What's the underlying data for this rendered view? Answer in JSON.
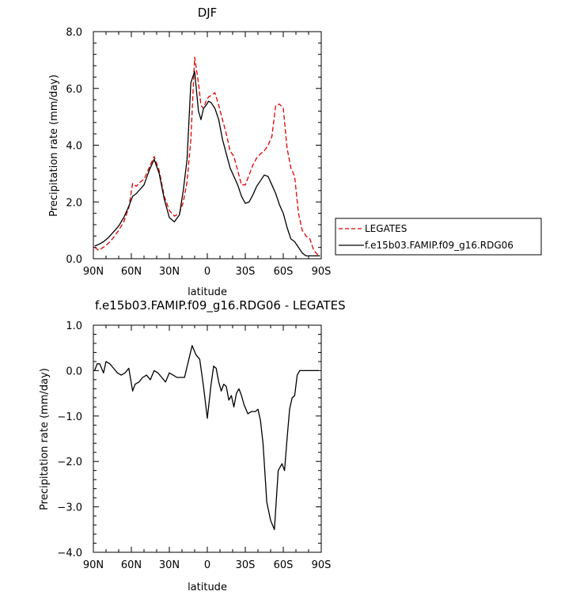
{
  "chart_data": [
    {
      "type": "line",
      "title": "DJF",
      "xlabel": "latitude",
      "ylabel": "Precipitation rate (mm/day)",
      "xlim": [
        90,
        -90
      ],
      "ylim": [
        0,
        8
      ],
      "x_ticks": [
        90,
        60,
        30,
        0,
        -30,
        -60,
        -90
      ],
      "x_tick_labels": [
        "90N",
        "60N",
        "30N",
        "0",
        "30S",
        "60S",
        "90S"
      ],
      "y_ticks": [
        0,
        2,
        4,
        6,
        8
      ],
      "y_tick_labels": [
        "0.0",
        "2.0",
        "4.0",
        "6.0",
        "8.0"
      ],
      "legend_position": "right",
      "series": [
        {
          "name": "LEGATES",
          "color": "#dd0000",
          "dash": "dashed",
          "x": [
            89,
            86,
            82,
            78,
            74,
            70,
            66,
            62,
            59,
            56,
            53,
            50,
            46,
            42,
            38,
            34,
            30,
            26,
            22,
            19,
            16,
            13,
            10,
            7,
            5,
            3,
            1,
            -1,
            -3,
            -6,
            -9,
            -12,
            -15,
            -18,
            -21,
            -24,
            -27,
            -30,
            -33,
            -36,
            -39,
            -42,
            -45,
            -48,
            -51,
            -54,
            -57,
            -60,
            -63,
            -66,
            -69,
            -72,
            -75,
            -78,
            -81,
            -84,
            -87,
            -89
          ],
          "values": [
            0.4,
            0.3,
            0.4,
            0.55,
            0.75,
            1.0,
            1.3,
            1.8,
            2.65,
            2.55,
            2.7,
            2.8,
            3.2,
            3.6,
            3.1,
            2.2,
            1.7,
            1.5,
            1.6,
            2.0,
            2.7,
            4.2,
            7.1,
            6.2,
            5.4,
            5.3,
            5.55,
            5.7,
            5.75,
            5.85,
            5.4,
            4.9,
            4.4,
            3.8,
            3.6,
            3.1,
            2.6,
            2.6,
            2.95,
            3.3,
            3.55,
            3.7,
            3.8,
            4.0,
            4.3,
            5.4,
            5.45,
            5.3,
            3.9,
            3.2,
            2.9,
            1.6,
            1.0,
            0.8,
            0.7,
            0.3,
            0.15,
            0.1
          ]
        },
        {
          "name": "f.e15b03.FAMIP.f09_g16.RDG06",
          "color": "#000000",
          "dash": "solid",
          "x": [
            89,
            86,
            82,
            78,
            74,
            70,
            66,
            62,
            59,
            56,
            53,
            50,
            46,
            42,
            38,
            34,
            30,
            26,
            22,
            19,
            16,
            13,
            10,
            7,
            5,
            3,
            1,
            -1,
            -3,
            -6,
            -9,
            -12,
            -15,
            -18,
            -21,
            -24,
            -27,
            -30,
            -33,
            -36,
            -39,
            -42,
            -45,
            -48,
            -51,
            -54,
            -57,
            -60,
            -63,
            -66,
            -69,
            -72,
            -75,
            -78,
            -81,
            -84,
            -87,
            -89
          ],
          "values": [
            0.45,
            0.5,
            0.6,
            0.75,
            0.95,
            1.15,
            1.45,
            1.85,
            2.2,
            2.3,
            2.45,
            2.6,
            3.1,
            3.5,
            3.0,
            2.1,
            1.45,
            1.3,
            1.55,
            2.4,
            3.5,
            6.2,
            6.6,
            5.2,
            4.9,
            5.3,
            5.4,
            5.55,
            5.5,
            5.3,
            4.9,
            4.2,
            3.7,
            3.2,
            2.9,
            2.6,
            2.2,
            1.95,
            2.0,
            2.25,
            2.55,
            2.75,
            2.95,
            2.9,
            2.6,
            2.3,
            1.9,
            1.6,
            1.1,
            0.7,
            0.6,
            0.4,
            0.2,
            0.1,
            0.1,
            0.1,
            0.1,
            0.1
          ]
        }
      ]
    },
    {
      "type": "line",
      "title": "f.e15b03.FAMIP.f09_g16.RDG06 - LEGATES",
      "xlabel": "latitude",
      "ylabel": "Precipitation rate (mm/day)",
      "xlim": [
        90,
        -90
      ],
      "ylim": [
        -4,
        1
      ],
      "x_ticks": [
        90,
        60,
        30,
        0,
        -30,
        -60,
        -90
      ],
      "x_tick_labels": [
        "90N",
        "60N",
        "30N",
        "0",
        "30S",
        "60S",
        "90S"
      ],
      "y_ticks": [
        -4,
        -3,
        -2,
        -1,
        0,
        1
      ],
      "y_tick_labels": [
        "−4.0",
        "−3.0",
        "−2.0",
        "−1.0",
        "0.0",
        "1.0"
      ],
      "series": [
        {
          "color": "#000000",
          "dash": "solid",
          "x": [
            89,
            87,
            85,
            82,
            80,
            77,
            74,
            71,
            68,
            65,
            62,
            59,
            57,
            54,
            51,
            48,
            45,
            42,
            39,
            36,
            33,
            30,
            27,
            24,
            21,
            18,
            15,
            12,
            9,
            6,
            3,
            0,
            -3,
            -5,
            -7,
            -9,
            -11,
            -13,
            -15,
            -17,
            -19,
            -21,
            -23,
            -25,
            -27,
            -29,
            -32,
            -35,
            -38,
            -40,
            -42,
            -44,
            -47,
            -50,
            -53,
            -56,
            -59,
            -61,
            -63,
            -65,
            -67,
            -69,
            -71,
            -73,
            -75,
            -77,
            -80,
            -83,
            -86,
            -88
          ],
          "values": [
            0.0,
            0.15,
            0.15,
            -0.05,
            0.2,
            0.15,
            0.05,
            -0.05,
            -0.1,
            -0.05,
            0.05,
            -0.45,
            -0.3,
            -0.25,
            -0.15,
            -0.1,
            -0.2,
            0.0,
            -0.05,
            -0.15,
            -0.25,
            -0.05,
            -0.1,
            -0.15,
            -0.15,
            -0.15,
            0.2,
            0.55,
            0.35,
            0.25,
            -0.35,
            -1.05,
            -0.3,
            0.1,
            0.05,
            -0.25,
            -0.45,
            -0.3,
            -0.35,
            -0.65,
            -0.55,
            -0.8,
            -0.5,
            -0.4,
            -0.55,
            -0.75,
            -0.95,
            -0.9,
            -0.9,
            -0.85,
            -1.1,
            -1.6,
            -2.9,
            -3.3,
            -3.5,
            -2.2,
            -2.05,
            -2.2,
            -1.5,
            -0.85,
            -0.6,
            -0.55,
            -0.1,
            0.0,
            0.0,
            0.0,
            0.0,
            0.0,
            0.0,
            0.0
          ]
        }
      ]
    }
  ]
}
